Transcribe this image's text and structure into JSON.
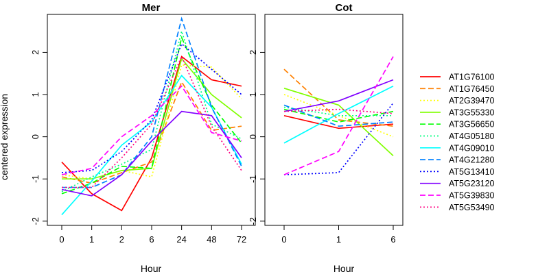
{
  "chart_data": {
    "type": "line",
    "ylabel": "centered expression",
    "yticks": [
      -2,
      -1,
      0,
      1,
      2
    ],
    "ylim": [
      -2.1,
      2.9
    ],
    "legend_position": "right",
    "series": [
      {
        "name": "AT1G76100",
        "color": "#FF0000",
        "dash": "solid"
      },
      {
        "name": "AT1G76450",
        "color": "#FF8000",
        "dash": "dashed"
      },
      {
        "name": "AT2G39470",
        "color": "#FFFF00",
        "dash": "dotted"
      },
      {
        "name": "AT3G55330",
        "color": "#80FF00",
        "dash": "solid"
      },
      {
        "name": "AT3G56650",
        "color": "#00FF00",
        "dash": "dashed"
      },
      {
        "name": "AT4G05180",
        "color": "#00FF80",
        "dash": "dotted"
      },
      {
        "name": "AT4G09010",
        "color": "#00FFFF",
        "dash": "solid"
      },
      {
        "name": "AT4G21280",
        "color": "#0080FF",
        "dash": "dashed"
      },
      {
        "name": "AT5G13410",
        "color": "#0000FF",
        "dash": "dotted"
      },
      {
        "name": "AT5G23120",
        "color": "#8000FF",
        "dash": "solid"
      },
      {
        "name": "AT5G39830",
        "color": "#FF00FF",
        "dash": "dashed"
      },
      {
        "name": "AT5G53490",
        "color": "#FF0080",
        "dash": "dotted"
      }
    ],
    "panels": [
      {
        "title": "Mer",
        "xlabel": "Hour",
        "categories": [
          "0",
          "1",
          "2",
          "6",
          "24",
          "48",
          "72"
        ],
        "values": [
          [
            -0.6,
            -1.35,
            -1.75,
            -0.5,
            1.9,
            1.35,
            1.2
          ],
          [
            -0.95,
            -1.1,
            -0.85,
            -0.6,
            1.3,
            0.15,
            0.25
          ],
          [
            -0.9,
            -1.0,
            -0.8,
            -0.95,
            1.7,
            1.65,
            0.9
          ],
          [
            -1.0,
            -1.0,
            -0.8,
            -0.75,
            1.85,
            1.0,
            0.45
          ],
          [
            -1.35,
            -1.1,
            -0.7,
            -0.75,
            2.35,
            0.75,
            -0.15
          ],
          [
            -1.3,
            -0.95,
            -0.65,
            -0.3,
            2.5,
            0.3,
            -0.05
          ],
          [
            -1.85,
            -1.05,
            -0.2,
            0.35,
            1.45,
            0.7,
            -0.65
          ],
          [
            -1.2,
            -1.2,
            -0.9,
            0.0,
            2.8,
            0.7,
            -0.7
          ],
          [
            -0.85,
            -0.8,
            -0.35,
            0.4,
            2.2,
            1.6,
            1.0
          ],
          [
            -1.25,
            -1.4,
            -0.9,
            -0.1,
            0.6,
            0.5,
            -0.5
          ],
          [
            -0.9,
            -0.75,
            0.0,
            0.5,
            1.2,
            0.1,
            -0.1
          ],
          [
            -1.2,
            -1.2,
            -0.5,
            0.3,
            1.9,
            0.25,
            -0.8
          ]
        ]
      },
      {
        "title": "Cot",
        "xlabel": "Hour",
        "categories": [
          "0",
          "1",
          "6"
        ],
        "values": [
          [
            0.5,
            0.2,
            0.3
          ],
          [
            1.6,
            0.4,
            0.25
          ],
          [
            1.0,
            0.5,
            0.0
          ],
          [
            1.15,
            0.75,
            -0.45
          ],
          [
            0.65,
            0.35,
            0.6
          ],
          [
            0.7,
            0.5,
            0.5
          ],
          [
            -0.15,
            0.55,
            1.2
          ],
          [
            0.75,
            0.25,
            0.35
          ],
          [
            -0.9,
            -0.85,
            0.8
          ],
          [
            0.6,
            0.85,
            1.35
          ],
          [
            -0.9,
            -0.35,
            1.9
          ],
          [
            0.6,
            0.65,
            0.55
          ]
        ]
      }
    ]
  }
}
